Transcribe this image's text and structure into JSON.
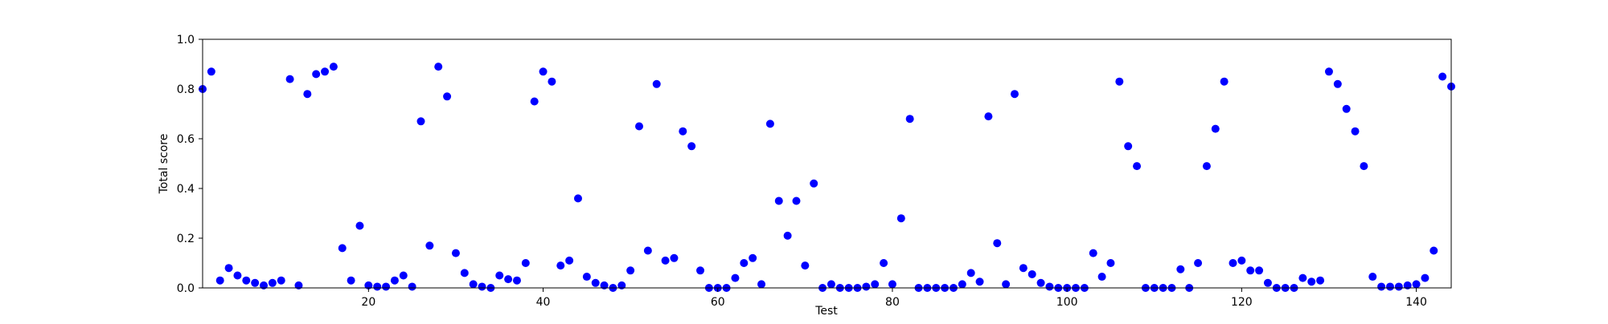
{
  "chart_data": {
    "type": "scatter",
    "title": "",
    "xlabel": "Test",
    "ylabel": "Total score",
    "xlim": [
      1,
      144
    ],
    "ylim": [
      0,
      1.0
    ],
    "xticks": [
      "20",
      "40",
      "60",
      "80",
      "100",
      "120",
      "140"
    ],
    "yticks": [
      "0.0",
      "0.2",
      "0.4",
      "0.6",
      "0.8",
      "1.0"
    ],
    "grid": false,
    "marker_color": "#0000ff",
    "x": [
      1,
      2,
      3,
      4,
      5,
      6,
      7,
      8,
      9,
      10,
      11,
      12,
      13,
      14,
      15,
      16,
      17,
      18,
      19,
      20,
      21,
      22,
      23,
      24,
      25,
      26,
      27,
      28,
      29,
      30,
      31,
      32,
      33,
      34,
      35,
      36,
      37,
      38,
      39,
      40,
      41,
      42,
      43,
      44,
      45,
      46,
      47,
      48,
      49,
      50,
      51,
      52,
      53,
      54,
      55,
      56,
      57,
      58,
      59,
      60,
      61,
      62,
      63,
      64,
      65,
      66,
      67,
      68,
      69,
      70,
      71,
      72,
      73,
      74,
      75,
      76,
      77,
      78,
      79,
      80,
      81,
      82,
      83,
      84,
      85,
      86,
      87,
      88,
      89,
      90,
      91,
      92,
      93,
      94,
      95,
      96,
      97,
      98,
      99,
      100,
      101,
      102,
      103,
      104,
      105,
      106,
      107,
      108,
      109,
      110,
      111,
      112,
      113,
      114,
      115,
      116,
      117,
      118,
      119,
      120,
      121,
      122,
      123,
      124,
      125,
      126,
      127,
      128,
      129,
      130,
      131,
      132,
      133,
      134,
      135,
      136,
      137,
      138,
      139,
      140,
      141,
      142,
      143,
      144
    ],
    "y": [
      0.8,
      0.87,
      0.03,
      0.08,
      0.05,
      0.03,
      0.02,
      0.01,
      0.02,
      0.03,
      0.84,
      0.01,
      0.78,
      0.86,
      0.87,
      0.89,
      0.16,
      0.03,
      0.25,
      0.01,
      0.005,
      0.005,
      0.03,
      0.05,
      0.005,
      0.67,
      0.17,
      0.89,
      0.77,
      0.14,
      0.06,
      0.015,
      0.005,
      0.0,
      0.05,
      0.035,
      0.03,
      0.1,
      0.75,
      0.87,
      0.83,
      0.09,
      0.11,
      0.36,
      0.045,
      0.02,
      0.01,
      0.0,
      0.01,
      0.07,
      0.65,
      0.15,
      0.82,
      0.11,
      0.12,
      0.63,
      0.57,
      0.07,
      0.0,
      0.0,
      0.0,
      0.04,
      0.1,
      0.12,
      0.015,
      0.66,
      0.35,
      0.21,
      0.35,
      0.09,
      0.42,
      0.0,
      0.015,
      0.0,
      0.0,
      0.0,
      0.005,
      0.015,
      0.1,
      0.015,
      0.28,
      0.68,
      0.0,
      0.0,
      0.0,
      0.0,
      0.0,
      0.015,
      0.06,
      0.025,
      0.69,
      0.18,
      0.015,
      0.78,
      0.08,
      0.055,
      0.02,
      0.005,
      0.0,
      0.0,
      0.0,
      0.0,
      0.14,
      0.045,
      0.1,
      0.83,
      0.57,
      0.49,
      0.0,
      0.0,
      0.0,
      0.0,
      0.075,
      0.0,
      0.1,
      0.49,
      0.64,
      0.83,
      0.1,
      0.11,
      0.07,
      0.07,
      0.02,
      0.0,
      0.0,
      0.0,
      0.04,
      0.025,
      0.03,
      0.87,
      0.82,
      0.72,
      0.63,
      0.49,
      0.045,
      0.005,
      0.005,
      0.005,
      0.01,
      0.015,
      0.04,
      0.15,
      0.85,
      0.81
    ]
  }
}
